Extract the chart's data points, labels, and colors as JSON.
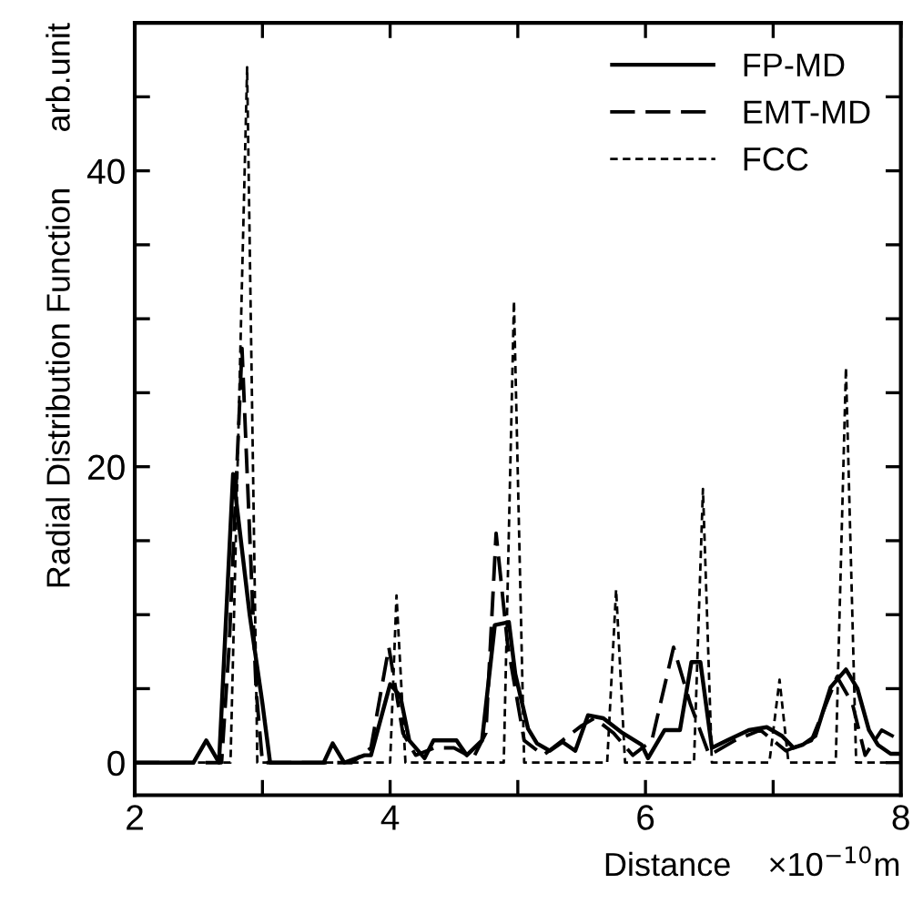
{
  "chart_data": {
    "type": "line",
    "xlabel": "Distance    ×10$^{−10}$m",
    "ylabel": "Radial Distribution Function      arb.unit",
    "xlim": [
      2,
      8
    ],
    "ylim": [
      -2.2,
      50
    ],
    "xticks": [
      2,
      {
        "value": 3,
        "label": null
      },
      4,
      {
        "value": 5,
        "label": null
      },
      6,
      {
        "value": 7,
        "label": null
      },
      8
    ],
    "yticks": [
      0,
      {
        "value": 5,
        "label": null
      },
      {
        "value": 10,
        "label": null
      },
      {
        "value": 15,
        "label": null
      },
      20,
      {
        "value": 25,
        "label": null
      },
      {
        "value": 30,
        "label": null
      },
      {
        "value": 35,
        "label": null
      },
      40,
      {
        "value": 45,
        "label": null
      }
    ],
    "legend": "top right",
    "grid": false,
    "series": [
      {
        "name": "FP-MD",
        "color": "#000000",
        "line_style": "solid",
        "x": [
          2.0,
          2.46,
          2.56,
          2.66,
          2.77,
          2.9,
          3.0,
          3.06,
          3.48,
          3.55,
          3.64,
          3.8,
          3.85,
          4.0,
          4.08,
          4.15,
          4.27,
          4.34,
          4.52,
          4.6,
          4.72,
          4.82,
          4.93,
          4.98,
          5.08,
          5.15,
          5.25,
          5.35,
          5.45,
          5.55,
          5.67,
          5.82,
          5.97,
          6.02,
          6.15,
          6.27,
          6.36,
          6.43,
          6.52,
          6.64,
          6.81,
          6.95,
          7.07,
          7.16,
          7.23,
          7.33,
          7.45,
          7.57,
          7.66,
          7.75,
          7.82,
          7.92,
          8.0
        ],
        "values": [
          0,
          0,
          1.5,
          0,
          19.5,
          10,
          4,
          0,
          0,
          1.3,
          0,
          0.5,
          0.5,
          5.3,
          4.5,
          1.5,
          0.3,
          1.5,
          1.5,
          0.5,
          1.5,
          9.3,
          9.5,
          6,
          2.3,
          1.3,
          0.8,
          1.4,
          0.8,
          3.2,
          3,
          2,
          1.2,
          0.3,
          2.2,
          2.2,
          6.8,
          6.8,
          1,
          1.5,
          2.2,
          2.4,
          1.8,
          1.0,
          1.2,
          1.8,
          5.1,
          6.3,
          5,
          2.2,
          1.2,
          0.6,
          0.6
        ]
      },
      {
        "name": "EMT-MD",
        "color": "#000000",
        "line_style": "dashed",
        "x": [
          2.0,
          2.68,
          2.74,
          2.84,
          2.95,
          3.0,
          3.7,
          3.85,
          3.99,
          4.1,
          4.2,
          4.35,
          4.5,
          4.65,
          4.75,
          4.83,
          4.92,
          5.05,
          5.2,
          5.35,
          5.5,
          5.6,
          5.75,
          5.9,
          6.05,
          6.22,
          6.35,
          6.5,
          6.7,
          6.9,
          7.1,
          7.3,
          7.5,
          7.62,
          7.72,
          7.85,
          8.0
        ],
        "values": [
          0,
          0,
          8,
          28,
          5,
          0,
          0,
          1,
          7.8,
          2,
          0.5,
          1,
          1,
          0.3,
          2,
          15.5,
          8,
          1.5,
          0.5,
          1.5,
          2.5,
          3,
          2,
          0.5,
          1.5,
          7.8,
          4,
          0.5,
          1.5,
          2.2,
          0.8,
          1.5,
          5.8,
          4,
          0.5,
          2.2,
          1.5
        ]
      },
      {
        "name": "FCC",
        "color": "#000000",
        "line_style": "dotted",
        "x": [
          2.0,
          2.75,
          2.88,
          2.96,
          4.0,
          4.05,
          4.12,
          4.89,
          4.97,
          5.05,
          5.7,
          5.77,
          5.84,
          6.38,
          6.45,
          6.52,
          6.97,
          7.05,
          7.12,
          7.49,
          7.57,
          7.65,
          8.0
        ],
        "values": [
          0,
          0,
          47,
          0,
          0,
          11.3,
          0,
          0,
          31.2,
          0,
          0,
          11.7,
          0,
          0,
          18.5,
          0,
          0,
          5.6,
          0,
          0,
          26.7,
          0,
          0
        ]
      }
    ]
  }
}
